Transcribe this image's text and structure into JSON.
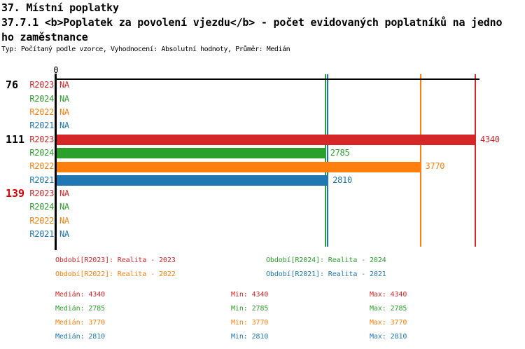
{
  "header": {
    "title": "37. Místní poplatky",
    "subtitle_line1": "37.7.1 <b>Poplatek za povolení vjezdu</b> - počet evidovaných poplatníků na jedno",
    "subtitle_line2": "ho zaměstnance",
    "meta": "Typ: Počítaný podle vzorce, Vyhodnocení: Absolutní hodnoty, Průměr: Medián"
  },
  "chart_data": {
    "type": "bar",
    "orientation": "horizontal",
    "axis": {
      "origin_label": "0",
      "max_value": 4340
    },
    "series": [
      {
        "id": "R2023",
        "name": "Realita - 2023",
        "color": "#d62728"
      },
      {
        "id": "R2024",
        "name": "Realita - 2024",
        "color": "#2ca02c"
      },
      {
        "id": "R2022",
        "name": "Realita - 2022",
        "color": "#ff7f0e"
      },
      {
        "id": "R2021",
        "name": "Realita - 2021",
        "color": "#1f77b4"
      }
    ],
    "groups": [
      {
        "label": "76",
        "label_color": "#000000",
        "rows": [
          {
            "series": "R2023",
            "value": null,
            "display": "NA"
          },
          {
            "series": "R2024",
            "value": null,
            "display": "NA"
          },
          {
            "series": "R2022",
            "value": null,
            "display": "NA"
          },
          {
            "series": "R2021",
            "value": null,
            "display": "NA"
          }
        ]
      },
      {
        "label": "111",
        "label_color": "#000000",
        "rows": [
          {
            "series": "R2023",
            "value": 4340,
            "display": "4340"
          },
          {
            "series": "R2024",
            "value": 2785,
            "display": "2785"
          },
          {
            "series": "R2022",
            "value": 3770,
            "display": "3770"
          },
          {
            "series": "R2021",
            "value": 2810,
            "display": "2810"
          }
        ]
      },
      {
        "label": "139",
        "label_color": "#dd0000",
        "rows": [
          {
            "series": "R2023",
            "value": null,
            "display": "NA"
          },
          {
            "series": "R2024",
            "value": null,
            "display": "NA"
          },
          {
            "series": "R2022",
            "value": null,
            "display": "NA"
          },
          {
            "series": "R2021",
            "value": null,
            "display": "NA"
          }
        ]
      }
    ],
    "reference_lines": [
      {
        "series": "R2024",
        "value": 2785,
        "color": "#2ca02c"
      },
      {
        "series": "R2021",
        "value": 2810,
        "color": "#1f77b4"
      },
      {
        "series": "R2022",
        "value": 3770,
        "color": "#ff7f0e"
      },
      {
        "series": "R2023",
        "value": 4340,
        "color": "#d62728"
      }
    ]
  },
  "legend": {
    "items": [
      {
        "id": "R2023",
        "text": "Období[R2023]: Realita - 2023",
        "color": "#d62728",
        "col": 0,
        "row": 0
      },
      {
        "id": "R2024",
        "text": "Období[R2024]: Realita - 2024",
        "color": "#2ca02c",
        "col": 1,
        "row": 0
      },
      {
        "id": "R2022",
        "text": "Období[R2022]: Realita - 2022",
        "color": "#ff7f0e",
        "col": 0,
        "row": 1
      },
      {
        "id": "R2021",
        "text": "Období[R2021]: Realita - 2021",
        "color": "#1f77b4",
        "col": 1,
        "row": 1
      }
    ]
  },
  "stats": {
    "rows": [
      {
        "id": "R2023",
        "color": "#d62728",
        "median": "Medián: 4340",
        "min": "Min: 4340",
        "max": "Max: 4340"
      },
      {
        "id": "R2024",
        "color": "#2ca02c",
        "median": "Medián: 2785",
        "min": "Min: 2785",
        "max": "Max: 2785"
      },
      {
        "id": "R2022",
        "color": "#ff7f0e",
        "median": "Medián: 3770",
        "min": "Min: 3770",
        "max": "Max: 3770"
      },
      {
        "id": "R2021",
        "color": "#1f77b4",
        "median": "Medián: 2810",
        "min": "Min: 2810",
        "max": "Max: 2810"
      }
    ]
  }
}
